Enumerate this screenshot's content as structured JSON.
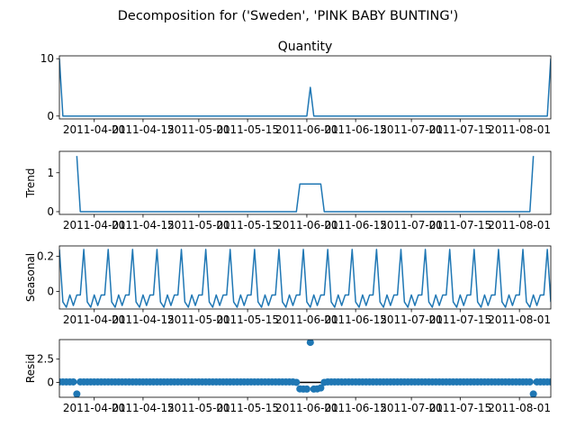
{
  "figure": {
    "title": "Decomposition for ('Sweden', 'PINK BABY BUNTING')"
  },
  "colors": {
    "line": "#1f77b4",
    "axis": "#000000",
    "background": "#ffffff"
  },
  "chart_data": [
    {
      "type": "line",
      "title": "Quantity",
      "ylabel": "",
      "ylim": [
        -0.5,
        10.5
      ],
      "yticks": [
        0,
        10
      ],
      "xlim": [
        "2011-03-22",
        "2011-08-10"
      ],
      "xticks": [
        "2011-04-01",
        "2011-04-15",
        "2011-05-01",
        "2011-05-15",
        "2011-06-01",
        "2011-06-15",
        "2011-07-01",
        "2011-07-15",
        "2011-08-01"
      ],
      "series": [
        {
          "x": [
            "2011-03-22",
            "2011-03-23",
            "2011-06-01",
            "2011-06-02",
            "2011-06-03",
            "2011-08-09",
            "2011-08-10"
          ],
          "values": [
            10,
            0,
            0,
            5,
            0,
            0,
            10
          ]
        }
      ]
    },
    {
      "type": "line",
      "title": "",
      "ylabel": "Trend",
      "ylim": [
        -0.07,
        1.55
      ],
      "yticks": [
        0,
        1
      ],
      "xlim": [
        "2011-03-22",
        "2011-08-10"
      ],
      "xticks": [
        "2011-04-01",
        "2011-04-15",
        "2011-05-01",
        "2011-05-15",
        "2011-06-01",
        "2011-06-15",
        "2011-07-01",
        "2011-07-15",
        "2011-08-01"
      ],
      "series": [
        {
          "x": [
            "2011-03-27",
            "2011-03-28",
            "2011-05-29",
            "2011-05-30",
            "2011-06-05",
            "2011-06-06",
            "2011-08-04",
            "2011-08-05"
          ],
          "values": [
            1.43,
            0,
            0,
            0.71,
            0.71,
            0,
            0,
            1.43
          ]
        }
      ]
    },
    {
      "type": "line",
      "title": "",
      "ylabel": "Seasonal",
      "ylim": [
        -0.1,
        0.26
      ],
      "yticks": [
        0.0,
        0.2
      ],
      "xlim": [
        "2011-03-22",
        "2011-08-10"
      ],
      "xticks": [
        "2011-04-01",
        "2011-04-15",
        "2011-05-01",
        "2011-05-15",
        "2011-06-01",
        "2011-06-15",
        "2011-07-01",
        "2011-07-15",
        "2011-08-01"
      ],
      "period_days": 7,
      "first_day": "2011-03-22",
      "day_count": 142,
      "pattern": [
        0.24,
        -0.06,
        -0.09,
        -0.02,
        -0.08,
        -0.02,
        -0.02
      ]
    },
    {
      "type": "scatter",
      "title": "",
      "ylabel": "Resid",
      "ylim": [
        -1.6,
        4.6
      ],
      "yticks": [
        0.0,
        2.5
      ],
      "xlim": [
        "2011-03-22",
        "2011-08-10"
      ],
      "xticks": [
        "2011-04-01",
        "2011-04-15",
        "2011-05-01",
        "2011-05-15",
        "2011-06-01",
        "2011-06-15",
        "2011-07-01",
        "2011-07-15",
        "2011-08-01"
      ],
      "first_day": "2011-03-22",
      "day_count": 142,
      "baseline": 0,
      "default_value": 0.05,
      "overrides": {
        "2011-03-27": -1.25,
        "2011-05-29": 0.0,
        "2011-05-30": -0.7,
        "2011-05-31": -0.72,
        "2011-06-01": -0.72,
        "2011-06-02": 4.3,
        "2011-06-03": -0.72,
        "2011-06-04": -0.7,
        "2011-06-05": -0.6,
        "2011-06-06": 0.0,
        "2011-08-05": -1.25
      }
    }
  ]
}
